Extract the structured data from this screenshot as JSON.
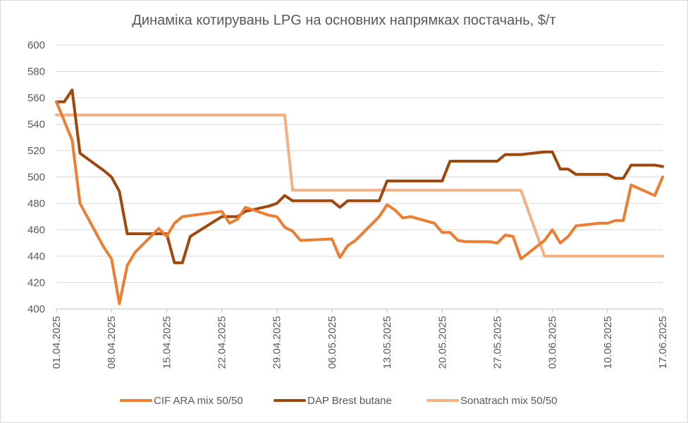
{
  "chart_data": {
    "type": "line",
    "title": "Динаміка котирувань LPG на основних напрямках постачань, $/т",
    "xlabel": "",
    "ylabel": "",
    "ylim": [
      400,
      600
    ],
    "y_ticks": [
      "400",
      "420",
      "440",
      "460",
      "480",
      "500",
      "520",
      "540",
      "560",
      "580",
      "600"
    ],
    "x_ticks": [
      "01.04.2025",
      "08.04.2025",
      "15.04.2025",
      "22.04.2025",
      "29.04.2025",
      "06.05.2025",
      "13.05.2025",
      "20.05.2025",
      "27.05.2025",
      "03.06.2025",
      "10.06.2025",
      "17.06.2025"
    ],
    "grid": "horizontal",
    "legend_position": "bottom",
    "series": [
      {
        "name": "CIF ARA mix 50/50",
        "color": "#ed7d31",
        "points": [
          [
            "01.04.2025",
            557
          ],
          [
            "03.04.2025",
            528
          ],
          [
            "04.04.2025",
            480
          ],
          [
            "07.04.2025",
            447
          ],
          [
            "08.04.2025",
            438
          ],
          [
            "09.04.2025",
            404
          ],
          [
            "10.04.2025",
            433
          ],
          [
            "11.04.2025",
            443
          ],
          [
            "14.04.2025",
            461
          ],
          [
            "15.04.2025",
            455
          ],
          [
            "16.04.2025",
            465
          ],
          [
            "17.04.2025",
            470
          ],
          [
            "22.04.2025",
            474
          ],
          [
            "23.04.2025",
            465
          ],
          [
            "24.04.2025",
            468
          ],
          [
            "25.04.2025",
            477
          ],
          [
            "28.04.2025",
            471
          ],
          [
            "29.04.2025",
            470
          ],
          [
            "30.04.2025",
            462
          ],
          [
            "01.05.2025",
            459
          ],
          [
            "02.05.2025",
            452
          ],
          [
            "06.05.2025",
            453
          ],
          [
            "07.05.2025",
            439
          ],
          [
            "08.05.2025",
            448
          ],
          [
            "09.05.2025",
            452
          ],
          [
            "12.05.2025",
            470
          ],
          [
            "13.05.2025",
            479
          ],
          [
            "14.05.2025",
            475
          ],
          [
            "15.05.2025",
            469
          ],
          [
            "16.05.2025",
            470
          ],
          [
            "19.05.2025",
            465
          ],
          [
            "20.05.2025",
            458
          ],
          [
            "21.05.2025",
            458
          ],
          [
            "22.05.2025",
            452
          ],
          [
            "23.05.2025",
            451
          ],
          [
            "26.05.2025",
            451
          ],
          [
            "27.05.2025",
            450
          ],
          [
            "28.05.2025",
            456
          ],
          [
            "29.05.2025",
            455
          ],
          [
            "30.05.2025",
            438
          ],
          [
            "02.06.2025",
            452
          ],
          [
            "03.06.2025",
            460
          ],
          [
            "04.06.2025",
            450
          ],
          [
            "05.06.2025",
            455
          ],
          [
            "06.06.2025",
            463
          ],
          [
            "09.06.2025",
            465
          ],
          [
            "10.06.2025",
            465
          ],
          [
            "11.06.2025",
            467
          ],
          [
            "12.06.2025",
            467
          ],
          [
            "13.06.2025",
            494
          ],
          [
            "16.06.2025",
            486
          ],
          [
            "17.06.2025",
            500
          ]
        ]
      },
      {
        "name": "DAP Brest butane",
        "color": "#9e480e",
        "points": [
          [
            "01.04.2025",
            557
          ],
          [
            "02.04.2025",
            557
          ],
          [
            "03.04.2025",
            566
          ],
          [
            "04.04.2025",
            518
          ],
          [
            "07.04.2025",
            505
          ],
          [
            "08.04.2025",
            500
          ],
          [
            "09.04.2025",
            489
          ],
          [
            "10.04.2025",
            457
          ],
          [
            "11.04.2025",
            457
          ],
          [
            "14.04.2025",
            457
          ],
          [
            "15.04.2025",
            457
          ],
          [
            "16.04.2025",
            435
          ],
          [
            "17.04.2025",
            435
          ],
          [
            "18.04.2025",
            455
          ],
          [
            "22.04.2025",
            470
          ],
          [
            "23.04.2025",
            470
          ],
          [
            "24.04.2025",
            470
          ],
          [
            "25.04.2025",
            474
          ],
          [
            "28.04.2025",
            478
          ],
          [
            "29.04.2025",
            480
          ],
          [
            "30.04.2025",
            486
          ],
          [
            "01.05.2025",
            482
          ],
          [
            "06.05.2025",
            482
          ],
          [
            "07.05.2025",
            477
          ],
          [
            "08.05.2025",
            482
          ],
          [
            "09.05.2025",
            482
          ],
          [
            "12.05.2025",
            482
          ],
          [
            "13.05.2025",
            497
          ],
          [
            "14.05.2025",
            497
          ],
          [
            "20.05.2025",
            497
          ],
          [
            "21.05.2025",
            512
          ],
          [
            "22.05.2025",
            512
          ],
          [
            "27.05.2025",
            512
          ],
          [
            "28.05.2025",
            517
          ],
          [
            "29.05.2025",
            517
          ],
          [
            "30.05.2025",
            517
          ],
          [
            "02.06.2025",
            519
          ],
          [
            "03.06.2025",
            519
          ],
          [
            "04.06.2025",
            506
          ],
          [
            "05.06.2025",
            506
          ],
          [
            "06.06.2025",
            502
          ],
          [
            "09.06.2025",
            502
          ],
          [
            "10.06.2025",
            502
          ],
          [
            "11.06.2025",
            499
          ],
          [
            "12.06.2025",
            499
          ],
          [
            "13.06.2025",
            509
          ],
          [
            "16.06.2025",
            509
          ],
          [
            "17.06.2025",
            508
          ]
        ]
      },
      {
        "name": "Sonatrach mix 50/50",
        "color": "#f4b183",
        "points": [
          [
            "01.04.2025",
            547
          ],
          [
            "30.04.2025",
            547
          ],
          [
            "01.05.2025",
            490
          ],
          [
            "30.05.2025",
            490
          ],
          [
            "02.06.2025",
            440
          ],
          [
            "17.06.2025",
            440
          ]
        ]
      }
    ]
  }
}
